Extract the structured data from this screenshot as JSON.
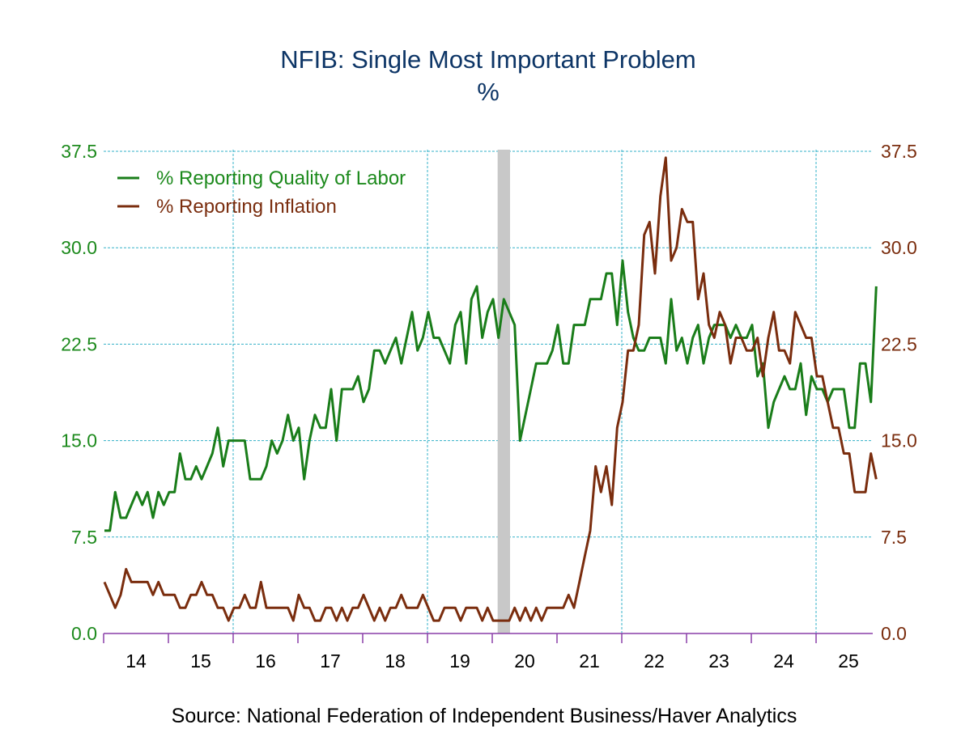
{
  "chart_data": {
    "type": "line",
    "title": "NFIB: Single Most Important Problem",
    "subtitle": "%",
    "source": "Source:  National Federation of Independent Business/Haver Analytics",
    "x_start": "2014-01",
    "frequency": "monthly",
    "x_tick_labels": [
      "14",
      "15",
      "16",
      "17",
      "18",
      "19",
      "20",
      "21",
      "22",
      "23",
      "24",
      "25"
    ],
    "y_left": {
      "min": 0,
      "max": 37.5,
      "ticks": [
        "0.0",
        "7.5",
        "15.0",
        "22.5",
        "30.0",
        "37.5"
      ],
      "color": "#1d8a1d"
    },
    "y_right": {
      "min": 0,
      "max": 37.5,
      "ticks": [
        "0.0",
        "7.5",
        "15.0",
        "22.5",
        "30.0",
        "37.5"
      ],
      "color": "#7a2d0e"
    },
    "grid": true,
    "legend_position": "top-left",
    "recession_shading": {
      "start": "2020-02",
      "end": "2020-04",
      "color": "#c8c8c8"
    },
    "series": [
      {
        "name": "% Reporting Quality of Labor",
        "color": "#1a7d1a",
        "values": [
          8,
          8,
          11,
          9,
          9,
          10,
          11,
          10,
          11,
          9,
          11,
          10,
          11,
          11,
          14,
          12,
          12,
          13,
          12,
          13,
          14,
          16,
          13,
          15,
          15,
          15,
          15,
          12,
          12,
          12,
          13,
          15,
          14,
          15,
          17,
          15,
          16,
          12,
          15,
          17,
          16,
          16,
          19,
          15,
          19,
          19,
          19,
          20,
          18,
          19,
          22,
          22,
          21,
          22,
          23,
          21,
          23,
          25,
          22,
          23,
          25,
          23,
          23,
          22,
          21,
          24,
          25,
          21,
          26,
          27,
          23,
          25,
          26,
          23,
          26,
          25,
          24,
          15,
          17,
          19,
          21,
          21,
          21,
          22,
          24,
          21,
          21,
          24,
          24,
          24,
          26,
          26,
          26,
          28,
          28,
          24,
          29,
          25,
          23,
          22,
          22,
          23,
          23,
          23,
          21,
          26,
          22,
          23,
          21,
          23,
          24,
          21,
          23,
          24,
          24,
          24,
          23,
          24,
          23,
          23,
          24,
          20,
          21,
          16,
          18,
          19,
          20,
          19,
          19,
          21,
          17,
          20,
          19,
          19,
          18,
          19,
          19,
          19,
          16,
          16,
          21,
          21,
          18,
          27
        ]
      },
      {
        "name": "% Reporting Inflation",
        "color": "#7a2d0e",
        "values": [
          4,
          3,
          2,
          3,
          5,
          4,
          4,
          4,
          4,
          3,
          4,
          3,
          3,
          3,
          2,
          2,
          3,
          3,
          4,
          3,
          3,
          2,
          2,
          1,
          2,
          2,
          3,
          2,
          2,
          4,
          2,
          2,
          2,
          2,
          2,
          1,
          3,
          2,
          2,
          1,
          1,
          2,
          2,
          1,
          2,
          1,
          2,
          2,
          3,
          2,
          1,
          2,
          1,
          2,
          2,
          3,
          2,
          2,
          2,
          3,
          2,
          1,
          1,
          2,
          2,
          2,
          1,
          2,
          2,
          2,
          1,
          2,
          1,
          1,
          1,
          1,
          2,
          1,
          2,
          1,
          2,
          1,
          2,
          2,
          2,
          2,
          3,
          2,
          4,
          6,
          8,
          13,
          11,
          13,
          10,
          16,
          18,
          22,
          22,
          24,
          31,
          32,
          28,
          34,
          37,
          29,
          30,
          33,
          32,
          32,
          26,
          28,
          24,
          23,
          25,
          24,
          21,
          23,
          23,
          22,
          22,
          23,
          20,
          23,
          25,
          22,
          22,
          21,
          25,
          24,
          23,
          23,
          20,
          20,
          18,
          16,
          16,
          14,
          14,
          11,
          11,
          11,
          14,
          12
        ]
      }
    ]
  }
}
